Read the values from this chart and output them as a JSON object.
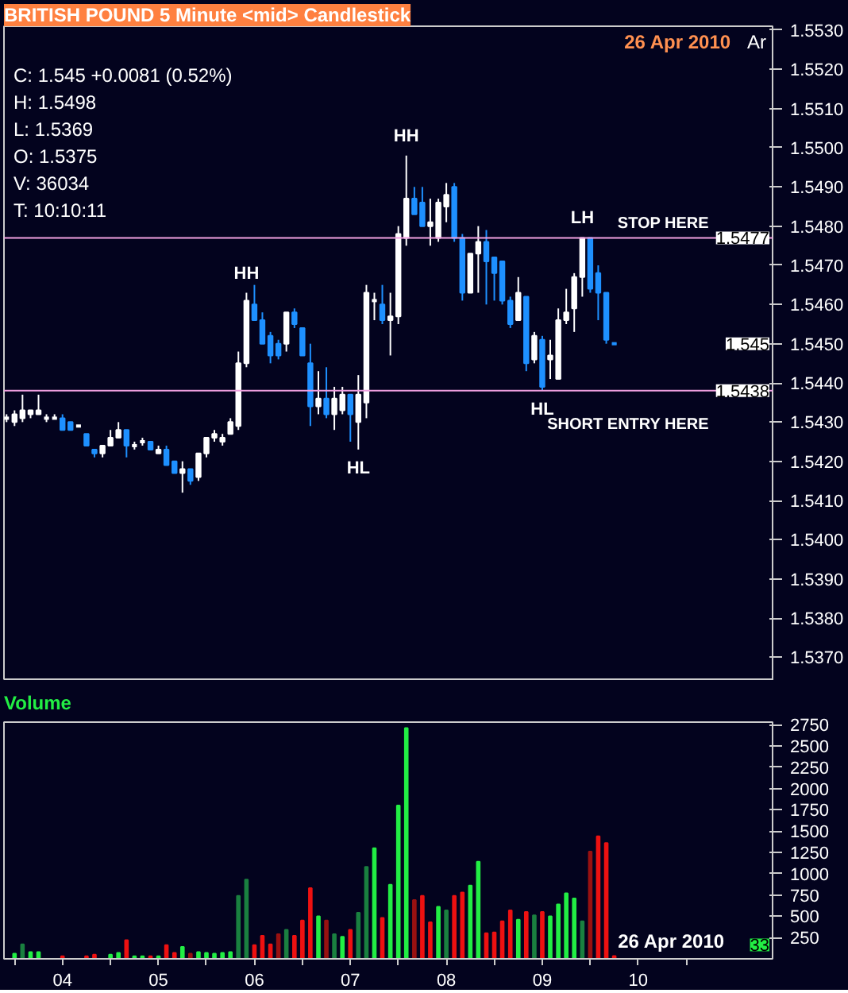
{
  "chart_data": [
    {
      "type": "candlestick",
      "title": "BRITISH POUND 5 Minute <mid> Candlestick",
      "subtitle": "26 Apr 2010",
      "x": [
        3.917,
        4.0,
        4.083,
        4.167,
        4.25,
        4.333,
        4.417,
        4.5,
        4.583,
        4.667,
        4.75,
        4.833,
        4.917,
        5.0,
        5.083,
        5.167,
        5.25,
        5.333,
        5.417,
        5.5,
        5.583,
        5.667,
        5.75,
        5.833,
        5.917,
        6.0,
        6.083,
        6.167,
        6.25,
        6.333,
        6.417,
        6.5,
        6.583,
        6.667,
        6.75,
        6.833,
        6.917,
        7.0,
        7.083,
        7.167,
        7.25,
        7.333,
        7.417,
        7.5,
        7.583,
        7.667,
        7.75,
        7.833,
        7.917,
        8.0,
        8.083,
        8.167,
        8.25,
        8.333,
        8.417,
        8.5,
        8.583,
        8.667,
        8.75,
        8.833,
        8.917,
        9.0,
        9.083,
        9.167,
        9.25,
        9.333,
        9.417,
        9.5,
        9.583,
        9.667,
        9.75,
        9.833,
        9.917,
        10.0,
        10.083,
        10.167,
        10.25
      ],
      "ohlc": [
        [
          1.5431,
          1.5432,
          1.543,
          1.5431
        ],
        [
          1.543,
          1.5433,
          1.5429,
          1.5432
        ],
        [
          1.5431,
          1.5437,
          1.543,
          1.5433
        ],
        [
          1.5432,
          1.5433,
          1.5431,
          1.5433
        ],
        [
          1.5432,
          1.5437,
          1.5432,
          1.5433
        ],
        [
          1.5431,
          1.5432,
          1.543,
          1.5431
        ],
        [
          1.5431,
          1.5432,
          1.5431,
          1.5431
        ],
        [
          1.5431,
          1.5432,
          1.5428,
          1.5428
        ],
        [
          1.543,
          1.543,
          1.5428,
          1.5428
        ],
        [
          1.5429,
          1.5429,
          1.5429,
          1.5429
        ],
        [
          1.5427,
          1.5427,
          1.5424,
          1.5424
        ],
        [
          1.5423,
          1.5423,
          1.5421,
          1.5422
        ],
        [
          1.5422,
          1.5424,
          1.5421,
          1.5424
        ],
        [
          1.5424,
          1.5428,
          1.5424,
          1.5426
        ],
        [
          1.5426,
          1.543,
          1.5426,
          1.5428
        ],
        [
          1.5428,
          1.5428,
          1.5421,
          1.5424
        ],
        [
          1.5424,
          1.5425,
          1.5423,
          1.5424
        ],
        [
          1.5425,
          1.5426,
          1.5424,
          1.5425
        ],
        [
          1.5425,
          1.5425,
          1.5423,
          1.5423
        ],
        [
          1.5422,
          1.5424,
          1.5422,
          1.5423
        ],
        [
          1.5423,
          1.5424,
          1.5419,
          1.5419
        ],
        [
          1.542,
          1.542,
          1.5417,
          1.5417
        ],
        [
          1.5417,
          1.542,
          1.5412,
          1.5418
        ],
        [
          1.5418,
          1.5418,
          1.5414,
          1.5415
        ],
        [
          1.5416,
          1.5422,
          1.5415,
          1.5422
        ],
        [
          1.5422,
          1.5426,
          1.5421,
          1.5426
        ],
        [
          1.5426,
          1.5428,
          1.5425,
          1.5427
        ],
        [
          1.5425,
          1.5427,
          1.5424,
          1.5426
        ],
        [
          1.5427,
          1.5431,
          1.5427,
          1.543
        ],
        [
          1.5429,
          1.5448,
          1.5428,
          1.5445
        ],
        [
          1.5445,
          1.5463,
          1.5444,
          1.5461
        ],
        [
          1.546,
          1.5465,
          1.5456,
          1.5456
        ],
        [
          1.5456,
          1.5458,
          1.545,
          1.545
        ],
        [
          1.5452,
          1.5453,
          1.5445,
          1.5447
        ],
        [
          1.545,
          1.5451,
          1.5446,
          1.5447
        ],
        [
          1.545,
          1.5458,
          1.5448,
          1.5458
        ],
        [
          1.5458,
          1.5459,
          1.5454,
          1.5455
        ],
        [
          1.5454,
          1.5454,
          1.5447,
          1.5447
        ],
        [
          1.5445,
          1.545,
          1.5429,
          1.5434
        ],
        [
          1.5434,
          1.5443,
          1.5432,
          1.5436
        ],
        [
          1.5436,
          1.5444,
          1.5431,
          1.5432
        ],
        [
          1.5432,
          1.5439,
          1.5428,
          1.5436
        ],
        [
          1.5433,
          1.5439,
          1.5432,
          1.5437
        ],
        [
          1.5437,
          1.5437,
          1.5425,
          1.5432
        ],
        [
          1.543,
          1.5442,
          1.5423,
          1.5437
        ],
        [
          1.5435,
          1.5465,
          1.5431,
          1.5463
        ],
        [
          1.5461,
          1.5463,
          1.5456,
          1.5461
        ],
        [
          1.546,
          1.5465,
          1.5455,
          1.5456
        ],
        [
          1.5456,
          1.5463,
          1.5447,
          1.5457
        ],
        [
          1.5457,
          1.548,
          1.5455,
          1.5478
        ],
        [
          1.5477,
          1.5498,
          1.5475,
          1.5487
        ],
        [
          1.5487,
          1.549,
          1.5483,
          1.5483
        ],
        [
          1.5486,
          1.549,
          1.548,
          1.548
        ],
        [
          1.548,
          1.5487,
          1.5475,
          1.5481
        ],
        [
          1.5477,
          1.5487,
          1.5476,
          1.5486
        ],
        [
          1.5485,
          1.5491,
          1.5481,
          1.5488
        ],
        [
          1.549,
          1.5491,
          1.5476,
          1.5477
        ],
        [
          1.5477,
          1.5478,
          1.5461,
          1.5463
        ],
        [
          1.5463,
          1.5473,
          1.5463,
          1.5473
        ],
        [
          1.5473,
          1.548,
          1.5463,
          1.5476
        ],
        [
          1.5476,
          1.5479,
          1.546,
          1.5471
        ],
        [
          1.5472,
          1.5472,
          1.5461,
          1.5468
        ],
        [
          1.5471,
          1.5471,
          1.546,
          1.5461
        ],
        [
          1.5461,
          1.5462,
          1.5454,
          1.5455
        ],
        [
          1.5456,
          1.5467,
          1.5456,
          1.5463
        ],
        [
          1.5462,
          1.5462,
          1.5443,
          1.5445
        ],
        [
          1.5446,
          1.5453,
          1.5445,
          1.5452
        ],
        [
          1.5451,
          1.5452,
          1.5438,
          1.5439
        ],
        [
          1.5446,
          1.5451,
          1.5441,
          1.5447
        ],
        [
          1.5441,
          1.5459,
          1.5441,
          1.5456
        ],
        [
          1.5456,
          1.5464,
          1.5455,
          1.5458
        ],
        [
          1.5459,
          1.5468,
          1.5453,
          1.5467
        ],
        [
          1.5467,
          1.5477,
          1.5462,
          1.5477
        ],
        [
          1.5477,
          1.5477,
          1.5463,
          1.5464
        ],
        [
          1.5468,
          1.547,
          1.5456,
          1.5463
        ],
        [
          1.5463,
          1.5463,
          1.545,
          1.5451
        ],
        [
          1.545,
          1.545,
          1.545,
          1.545
        ]
      ],
      "colors": [
        "#ffffff",
        "#ffffff",
        "#ffffff",
        "#ffffff",
        "#ffffff",
        "#ffffff",
        "#ffffff",
        "#1e90ff",
        "#1e90ff",
        "#ffffff",
        "#1e90ff",
        "#1e90ff",
        "#ffffff",
        "#ffffff",
        "#ffffff",
        "#1e90ff",
        "#ffffff",
        "#ffffff",
        "#1e90ff",
        "#ffffff",
        "#1e90ff",
        "#1e90ff",
        "#ffffff",
        "#1e90ff",
        "#ffffff",
        "#ffffff",
        "#ffffff",
        "#ffffff",
        "#ffffff",
        "#ffffff",
        "#ffffff",
        "#1e90ff",
        "#1e90ff",
        "#1e90ff",
        "#1e90ff",
        "#ffffff",
        "#1e90ff",
        "#1e90ff",
        "#1e90ff",
        "#ffffff",
        "#1e90ff",
        "#ffffff",
        "#ffffff",
        "#1e90ff",
        "#ffffff",
        "#ffffff",
        "#ffffff",
        "#1e90ff",
        "#ffffff",
        "#ffffff",
        "#ffffff",
        "#1e90ff",
        "#1e90ff",
        "#ffffff",
        "#ffffff",
        "#ffffff",
        "#1e90ff",
        "#1e90ff",
        "#ffffff",
        "#ffffff",
        "#1e90ff",
        "#1e90ff",
        "#1e90ff",
        "#1e90ff",
        "#ffffff",
        "#1e90ff",
        "#ffffff",
        "#1e90ff",
        "#ffffff",
        "#ffffff",
        "#ffffff",
        "#ffffff",
        "#ffffff",
        "#1e90ff",
        "#1e90ff",
        "#1e90ff",
        "#1e90ff"
      ],
      "xlim": [
        3.89,
        11.9
      ],
      "ylim": [
        1.5364,
        1.5531
      ],
      "yticks": [
        {
          "value": 1.537,
          "label": "1.5370"
        },
        {
          "value": 1.538,
          "label": "1.5380"
        },
        {
          "value": 1.539,
          "label": "1.5390"
        },
        {
          "value": 1.54,
          "label": "1.5400"
        },
        {
          "value": 1.541,
          "label": "1.5410"
        },
        {
          "value": 1.542,
          "label": "1.5420"
        },
        {
          "value": 1.543,
          "label": "1.5430"
        },
        {
          "value": 1.544,
          "label": "1.5440"
        },
        {
          "value": 1.545,
          "label": "1.5450"
        },
        {
          "value": 1.546,
          "label": "1.5460"
        },
        {
          "value": 1.547,
          "label": "1.5470"
        },
        {
          "value": 1.548,
          "label": "1.5480"
        },
        {
          "value": 1.549,
          "label": "1.5490"
        },
        {
          "value": 1.55,
          "label": "1.5500"
        },
        {
          "value": 1.551,
          "label": "1.5510"
        },
        {
          "value": 1.552,
          "label": "1.5520"
        },
        {
          "value": 1.553,
          "label": "1.5530"
        }
      ],
      "tick_labels": "y",
      "ref_lines": [
        {
          "axis": "y",
          "value": 1.5477,
          "label": "STOP HERE",
          "color": "#f0a0e0"
        },
        {
          "axis": "y",
          "value": 1.5438,
          "label": "SHORT ENTRY HERE",
          "color": "#f0a0e0"
        }
      ],
      "annotations": [
        "C: 1.545   +0.0081 (0.52%)",
        "H: 1.5498",
        "L: 1.5369",
        "O: 1.5375",
        "V: 36034",
        "T: 10:10:11",
        "Ar",
        "1.545",
        {
          "text": "1.5477",
          "y": 1.5477
        },
        {
          "text": "1.5438",
          "y": 1.5438
        },
        {
          "text": "HH",
          "x": 6.417,
          "y": 1.5463
        },
        {
          "text": "HH",
          "x": 8.083,
          "y": 1.5498
        },
        {
          "text": "HL",
          "x": 7.583,
          "y": 1.5423
        },
        {
          "text": "HL",
          "x": 9.5,
          "y": 1.5438
        },
        {
          "text": "LH",
          "x": 9.917,
          "y": 1.5477
        }
      ]
    },
    {
      "type": "bar",
      "title": "Volume",
      "x": [
        3.917,
        4.0,
        4.083,
        4.167,
        4.25,
        4.333,
        4.417,
        4.5,
        4.583,
        4.667,
        4.75,
        4.833,
        4.917,
        5.0,
        5.083,
        5.167,
        5.25,
        5.333,
        5.417,
        5.5,
        5.583,
        5.667,
        5.75,
        5.833,
        5.917,
        6.0,
        6.083,
        6.167,
        6.25,
        6.333,
        6.417,
        6.5,
        6.583,
        6.667,
        6.75,
        6.833,
        6.917,
        7.0,
        7.083,
        7.167,
        7.25,
        7.333,
        7.417,
        7.5,
        7.583,
        7.667,
        7.75,
        7.833,
        7.917,
        8.0,
        8.083,
        8.167,
        8.25,
        8.333,
        8.417,
        8.5,
        8.583,
        8.667,
        8.75,
        8.833,
        8.917,
        9.0,
        9.083,
        9.167,
        9.25,
        9.333,
        9.417,
        9.5,
        9.583,
        9.667,
        9.75,
        9.833,
        9.917,
        10.0,
        10.083,
        10.167,
        10.25
      ],
      "values": [
        0,
        60,
        170,
        80,
        80,
        0,
        0,
        30,
        0,
        0,
        30,
        50,
        0,
        50,
        70,
        220,
        30,
        30,
        30,
        30,
        160,
        70,
        140,
        60,
        80,
        70,
        60,
        70,
        80,
        740,
        930,
        160,
        270,
        170,
        290,
        340,
        270,
        450,
        830,
        500,
        450,
        290,
        260,
        340,
        540,
        1080,
        1300,
        480,
        870,
        1800,
        2710,
        690,
        740,
        430,
        610,
        570,
        740,
        780,
        860,
        1140,
        300,
        310,
        440,
        570,
        460,
        550,
        510,
        550,
        500,
        640,
        770,
        710,
        440,
        1260,
        1440,
        1360,
        33
      ],
      "colors": [
        "#22ee44",
        "#22ee44",
        "#1a8040",
        "#22ee44",
        "#22ee44",
        "#22ee44",
        "#22ee44",
        "#ee1111",
        "#ee1111",
        "#22ee44",
        "#ee1111",
        "#ee1111",
        "#22ee44",
        "#22ee44",
        "#22ee44",
        "#ee1111",
        "#22ee44",
        "#22ee44",
        "#ee1111",
        "#22ee44",
        "#ee1111",
        "#ee1111",
        "#22ee44",
        "#991111",
        "#22ee44",
        "#22ee44",
        "#22ee44",
        "#22ee44",
        "#22ee44",
        "#1a8040",
        "#1a8040",
        "#ee1111",
        "#ee1111",
        "#ee1111",
        "#991111",
        "#1a8040",
        "#ee1111",
        "#ee1111",
        "#ee1111",
        "#22ee44",
        "#991111",
        "#1a8040",
        "#22ee44",
        "#ee1111",
        "#1a8040",
        "#1a8040",
        "#22ee44",
        "#ee1111",
        "#22ee44",
        "#22ee44",
        "#22ee44",
        "#991111",
        "#ee1111",
        "#ee1111",
        "#22ee44",
        "#1a8040",
        "#ee1111",
        "#ee1111",
        "#22ee44",
        "#22ee44",
        "#ee1111",
        "#ee1111",
        "#ee1111",
        "#ee1111",
        "#22ee44",
        "#ee1111",
        "#1a8040",
        "#ee1111",
        "#22ee44",
        "#22ee44",
        "#22ee44",
        "#22ee44",
        "#1a8040",
        "#991111",
        "#ee1111",
        "#ee1111",
        "#ee1111"
      ],
      "xlim": [
        3.89,
        11.9
      ],
      "ylim": [
        0,
        2780
      ],
      "yticks": [
        250,
        500,
        750,
        1000,
        1250,
        1500,
        1750,
        2000,
        2250,
        2500,
        2750
      ],
      "xticks": [
        {
          "value": 4,
          "label": null
        },
        {
          "value": 4.5,
          "label": "04"
        },
        {
          "value": 5,
          "label": null
        },
        {
          "value": 5.5,
          "label": "05"
        },
        {
          "value": 6,
          "label": null
        },
        {
          "value": 6.5,
          "label": "06"
        },
        {
          "value": 7,
          "label": null
        },
        {
          "value": 7.5,
          "label": "07"
        },
        {
          "value": 8,
          "label": null
        },
        {
          "value": 8.5,
          "label": "08"
        },
        {
          "value": 9,
          "label": null
        },
        {
          "value": 9.5,
          "label": "09"
        },
        {
          "value": 10,
          "label": null
        },
        {
          "value": 10.5,
          "label": "10"
        },
        {
          "value": 11,
          "label": null
        }
      ],
      "annotations": [
        "26 Apr 2010",
        "33"
      ]
    }
  ]
}
